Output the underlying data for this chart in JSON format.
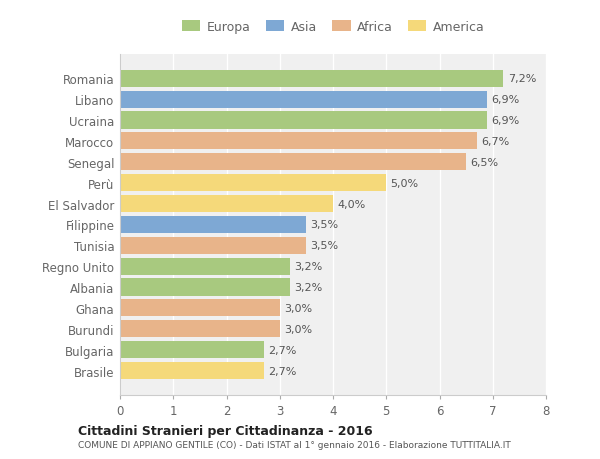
{
  "categories": [
    "Romania",
    "Libano",
    "Ucraina",
    "Marocco",
    "Senegal",
    "Perù",
    "El Salvador",
    "Filippine",
    "Tunisia",
    "Regno Unito",
    "Albania",
    "Ghana",
    "Burundi",
    "Bulgaria",
    "Brasile"
  ],
  "values": [
    7.2,
    6.9,
    6.9,
    6.7,
    6.5,
    5.0,
    4.0,
    3.5,
    3.5,
    3.2,
    3.2,
    3.0,
    3.0,
    2.7,
    2.7
  ],
  "continents": [
    "Europa",
    "Asia",
    "Europa",
    "Africa",
    "Africa",
    "America",
    "America",
    "Asia",
    "Africa",
    "Europa",
    "Europa",
    "Africa",
    "Africa",
    "Europa",
    "America"
  ],
  "colors": {
    "Europa": "#a8c97f",
    "Asia": "#7ea8d4",
    "Africa": "#e8b48a",
    "America": "#f5d97a"
  },
  "legend_order": [
    "Europa",
    "Asia",
    "Africa",
    "America"
  ],
  "xlim": [
    0,
    8
  ],
  "xticks": [
    0,
    1,
    2,
    3,
    4,
    5,
    6,
    7,
    8
  ],
  "title_bold": "Cittadini Stranieri per Cittadinanza - 2016",
  "subtitle": "COMUNE DI APPIANO GENTILE (CO) - Dati ISTAT al 1° gennaio 2016 - Elaborazione TUTTITALIA.IT",
  "background_color": "#ffffff",
  "plot_bg_color": "#f0f0f0",
  "grid_color": "#ffffff",
  "label_color": "#666666",
  "value_color": "#555555"
}
